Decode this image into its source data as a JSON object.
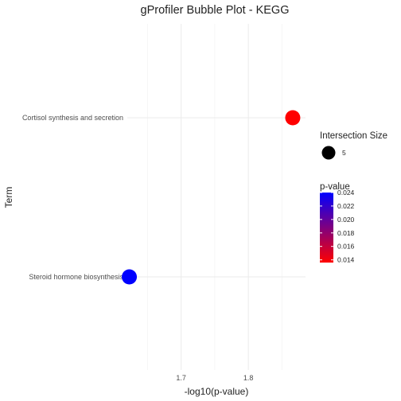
{
  "chart_data": {
    "type": "scatter",
    "title": "gProfiler Bubble Plot - KEGG",
    "xlabel": "-log10(p-value)",
    "ylabel": "Term",
    "x_ticks": [
      1.7,
      1.8
    ],
    "xlim": [
      1.62,
      1.885
    ],
    "categories": [
      "Cortisol synthesis and secretion",
      "Steroid hormone biosynthesis"
    ],
    "points": [
      {
        "term": "Cortisol synthesis and secretion",
        "x": 1.866,
        "intersection_size": 5,
        "p_value": 0.0136,
        "color": "#ff0000"
      },
      {
        "term": "Steroid hormone biosynthesis",
        "x": 1.623,
        "intersection_size": 5,
        "p_value": 0.0238,
        "color": "#0000ff"
      }
    ],
    "grid": true,
    "legend_placement": "right",
    "size_legend": {
      "title": "Intersection Size",
      "values": [
        5
      ]
    },
    "color_legend": {
      "title": "p-value",
      "ticks": [
        "0.024",
        "0.022",
        "0.020",
        "0.018",
        "0.016",
        "0.014"
      ],
      "tick_values": [
        0.024,
        0.022,
        0.02,
        0.018,
        0.016,
        0.014
      ],
      "range": [
        0.0136,
        0.024
      ],
      "low_color": "#ff0000",
      "high_color": "#0000ff"
    }
  }
}
